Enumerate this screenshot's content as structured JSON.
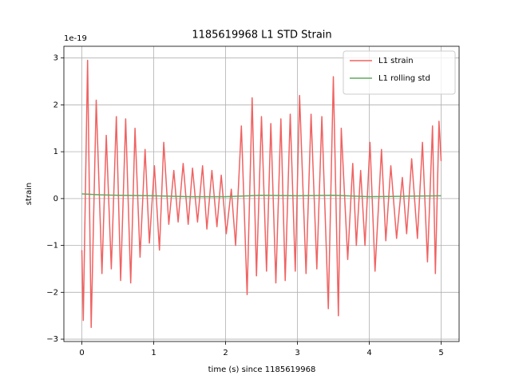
{
  "chart_data": {
    "type": "line",
    "title": "1185619968 L1 STD Strain",
    "xlabel": "time (s) since 1185619968",
    "ylabel": "strain",
    "y_offset_label": "1e-19",
    "xlim": [
      -0.25,
      5.25
    ],
    "ylim": [
      -3.05,
      3.25
    ],
    "xticks": [
      0,
      1,
      2,
      3,
      4,
      5
    ],
    "yticks": [
      {
        "value": -3,
        "label": "−3"
      },
      {
        "value": -2,
        "label": "−2"
      },
      {
        "value": -1,
        "label": "−1"
      },
      0,
      1,
      2,
      3
    ],
    "grid": true,
    "legend": "upper right",
    "series": [
      {
        "name": "L1 strain",
        "color": "#f06262",
        "x": [
          0,
          0.02,
          0.08,
          0.13,
          0.2,
          0.28,
          0.34,
          0.41,
          0.48,
          0.54,
          0.61,
          0.68,
          0.74,
          0.81,
          0.88,
          0.94,
          1.01,
          1.08,
          1.14,
          1.21,
          1.28,
          1.34,
          1.41,
          1.48,
          1.54,
          1.61,
          1.68,
          1.74,
          1.81,
          1.88,
          1.94,
          2.01,
          2.08,
          2.14,
          2.22,
          2.3,
          2.37,
          2.43,
          2.5,
          2.57,
          2.63,
          2.7,
          2.77,
          2.83,
          2.9,
          2.97,
          3.03,
          3.12,
          3.19,
          3.27,
          3.34,
          3.43,
          3.5,
          3.57,
          3.61,
          3.7,
          3.77,
          3.82,
          3.88,
          3.94,
          4.01,
          4.08,
          4.17,
          4.23,
          4.3,
          4.38,
          4.46,
          4.52,
          4.59,
          4.67,
          4.74,
          4.81,
          4.88,
          4.92,
          4.97,
          5.0
        ],
        "values": [
          -1.1,
          -2.6,
          2.95,
          -2.75,
          2.1,
          -1.6,
          1.35,
          -1.5,
          1.75,
          -1.75,
          1.7,
          -1.8,
          1.5,
          -1.25,
          1.05,
          -0.95,
          0.7,
          -1.1,
          1.2,
          -0.55,
          0.6,
          -0.5,
          0.75,
          -0.55,
          0.65,
          -0.5,
          0.7,
          -0.65,
          0.6,
          -0.6,
          0.5,
          -0.75,
          0.2,
          -1.0,
          1.55,
          -2.05,
          2.15,
          -1.65,
          1.75,
          -1.55,
          1.6,
          -1.8,
          1.7,
          -1.75,
          1.8,
          -1.55,
          2.2,
          -1.6,
          1.8,
          -1.5,
          1.75,
          -2.35,
          2.6,
          -2.5,
          1.5,
          -1.3,
          0.75,
          -1.0,
          0.6,
          -1.0,
          1.2,
          -1.55,
          1.05,
          -0.9,
          0.7,
          -0.85,
          0.45,
          -0.75,
          0.85,
          -0.85,
          1.2,
          -1.35,
          1.55,
          -1.6,
          1.65,
          0.8
        ]
      },
      {
        "name": "L1 rolling std",
        "color": "#62a862",
        "x": [
          0,
          0.25,
          0.5,
          1,
          1.5,
          2,
          2.5,
          3,
          3.5,
          4,
          4.5,
          5
        ],
        "values": [
          0.1,
          0.08,
          0.07,
          0.06,
          0.04,
          0.04,
          0.07,
          0.06,
          0.07,
          0.04,
          0.05,
          0.06
        ]
      }
    ]
  }
}
